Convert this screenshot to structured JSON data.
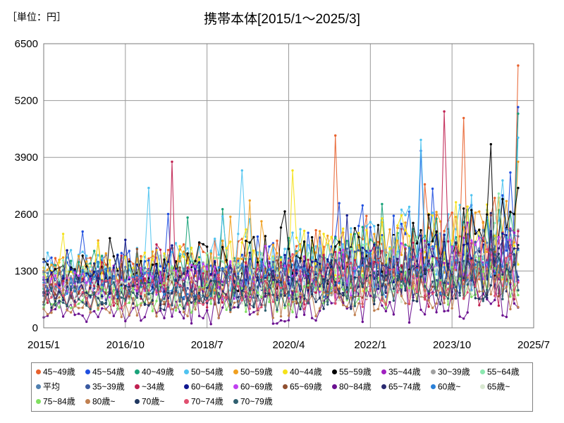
{
  "unit_label": "［単位：円］",
  "chart_data": {
    "type": "line",
    "title": "携帯本体[2015/1～2025/3]",
    "xlabel": "",
    "ylabel": "",
    "x_start": "2015-01",
    "x_end": "2025-03",
    "xlim": [
      "2015-01",
      "2025-07"
    ],
    "ylim": [
      0,
      6500
    ],
    "y_ticks": [
      0,
      1300,
      2600,
      3900,
      5200,
      6500
    ],
    "x_ticks": [
      "2015/1",
      "2016/10",
      "2018/7",
      "2020/4",
      "2022/1",
      "2023/10",
      "2025/7"
    ],
    "grid": true,
    "legend_position": "bottom",
    "series": [
      {
        "name": "45~49歳",
        "color": "#e8612c",
        "base": 1250,
        "trend": 900,
        "amp": 650,
        "seed": 1
      },
      {
        "name": "45~54歳",
        "color": "#1f4fe0",
        "base": 1300,
        "trend": 900,
        "amp": 600,
        "seed": 2
      },
      {
        "name": "40~49歳",
        "color": "#1aa37a",
        "base": 1250,
        "trend": 800,
        "amp": 600,
        "seed": 3
      },
      {
        "name": "50~54歳",
        "color": "#4fc3f0",
        "base": 1350,
        "trend": 900,
        "amp": 650,
        "seed": 4
      },
      {
        "name": "50~59歳",
        "color": "#f0a020",
        "base": 1300,
        "trend": 800,
        "amp": 600,
        "seed": 5
      },
      {
        "name": "40~44歳",
        "color": "#f5e21a",
        "base": 1250,
        "trend": 800,
        "amp": 650,
        "seed": 6
      },
      {
        "name": "55~59歳",
        "color": "#000000",
        "base": 1300,
        "trend": 800,
        "amp": 600,
        "seed": 7
      },
      {
        "name": "35~44歳",
        "color": "#a020c0",
        "base": 1000,
        "trend": 600,
        "amp": 450,
        "seed": 8
      },
      {
        "name": "30~39歳",
        "color": "#a0a0a0",
        "base": 950,
        "trend": 600,
        "amp": 450,
        "seed": 9
      },
      {
        "name": "55~64歳",
        "color": "#8ce8b0",
        "base": 1100,
        "trend": 600,
        "amp": 500,
        "seed": 10
      },
      {
        "name": "平均",
        "color": "#5080b0",
        "base": 1100,
        "trend": 500,
        "amp": 350,
        "seed": 11
      },
      {
        "name": "35~39歳",
        "color": "#3a5aa0",
        "base": 950,
        "trend": 600,
        "amp": 500,
        "seed": 12
      },
      {
        "name": "~34歳",
        "color": "#c02050",
        "base": 900,
        "trend": 500,
        "amp": 550,
        "seed": 13
      },
      {
        "name": "60~64歳",
        "color": "#101890",
        "base": 1050,
        "trend": 600,
        "amp": 500,
        "seed": 14
      },
      {
        "name": "60~69歳",
        "color": "#c040f0",
        "base": 1000,
        "trend": 600,
        "amp": 450,
        "seed": 15
      },
      {
        "name": "65~69歳",
        "color": "#905030",
        "base": 850,
        "trend": 600,
        "amp": 450,
        "seed": 16
      },
      {
        "name": "80~84歳",
        "color": "#6a1090",
        "base": 350,
        "trend": 400,
        "amp": 350,
        "seed": 17
      },
      {
        "name": "65~74歳",
        "color": "#2a2a70",
        "base": 850,
        "trend": 600,
        "amp": 450,
        "seed": 18
      },
      {
        "name": "60歳~",
        "color": "#2a80d8",
        "base": 950,
        "trend": 550,
        "amp": 400,
        "seed": 19
      },
      {
        "name": "65歳~",
        "color": "#d8e8d0",
        "base": 800,
        "trend": 550,
        "amp": 400,
        "seed": 20
      },
      {
        "name": "75~84歳",
        "color": "#80e060",
        "base": 650,
        "trend": 550,
        "amp": 400,
        "seed": 21
      },
      {
        "name": "80歳~",
        "color": "#c08050",
        "base": 500,
        "trend": 450,
        "amp": 350,
        "seed": 22
      },
      {
        "name": "70歳~",
        "color": "#203860",
        "base": 700,
        "trend": 550,
        "amp": 400,
        "seed": 23
      },
      {
        "name": "70~74歳",
        "color": "#e05070",
        "base": 750,
        "trend": 600,
        "amp": 450,
        "seed": 24
      },
      {
        "name": "70~79歳",
        "color": "#306070",
        "base": 700,
        "trend": 550,
        "amp": 400,
        "seed": 25
      }
    ],
    "highlights": [
      {
        "series": "45~49歳",
        "x": "2025-03",
        "y": 6000
      },
      {
        "series": "45~54歳",
        "x": "2025-03",
        "y": 5050
      },
      {
        "series": "40~49歳",
        "x": "2025-03",
        "y": 4900
      },
      {
        "series": "50~54歳",
        "x": "2025-03",
        "y": 4350
      },
      {
        "series": "50~59歳",
        "x": "2025-03",
        "y": 3800
      },
      {
        "series": "55~59歳",
        "x": "2025-03",
        "y": 3200
      },
      {
        "series": "~34歳",
        "x": "2023-08",
        "y": 4950
      },
      {
        "series": "~34歳",
        "x": "2017-10",
        "y": 3800
      },
      {
        "series": "45~49歳",
        "x": "2021-04",
        "y": 4400
      },
      {
        "series": "45~49歳",
        "x": "2024-01",
        "y": 4800
      },
      {
        "series": "55~59歳",
        "x": "2024-08",
        "y": 4200
      },
      {
        "series": "50~54歳",
        "x": "2023-02",
        "y": 4300
      },
      {
        "series": "50~54歳",
        "x": "2019-04",
        "y": 3600
      },
      {
        "series": "40~44歳",
        "x": "2020-05",
        "y": 3600
      },
      {
        "series": "50~54歳",
        "x": "2017-04",
        "y": 3200
      },
      {
        "series": "45~54歳",
        "x": "2023-02",
        "y": 4050
      }
    ]
  }
}
